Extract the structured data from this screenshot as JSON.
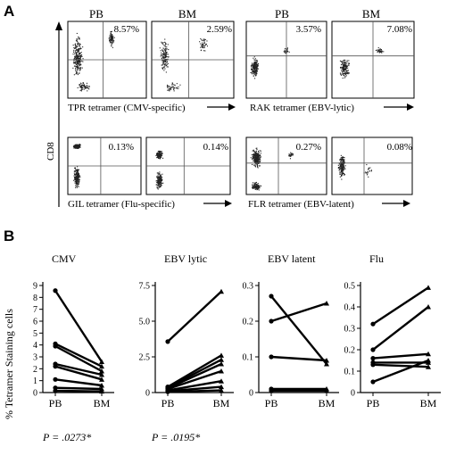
{
  "panel_a": {
    "label": "A",
    "ylabel": "CD8",
    "groups": [
      {
        "headers": [
          "PB",
          "BM"
        ],
        "percentages": [
          "8.57%",
          "2.59%"
        ],
        "xlabel": "TPR tetramer (CMV-specific)"
      },
      {
        "headers": [
          "PB",
          "BM"
        ],
        "percentages": [
          "3.57%",
          "7.08%"
        ],
        "xlabel": "RAK tetramer (EBV-lytic)"
      },
      {
        "headers": [],
        "percentages": [
          "0.13%",
          "0.14%"
        ],
        "xlabel": "GIL tetramer (Flu-specific)"
      },
      {
        "headers": [],
        "percentages": [
          "0.27%",
          "0.08%"
        ],
        "xlabel": "FLR tetramer (EBV-latent)"
      }
    ]
  },
  "panel_b": {
    "label": "B",
    "ylabel": "% Tetramer Staining cells"
  },
  "chart_data": [
    {
      "type": "line",
      "title": "CMV",
      "categories": [
        "PB",
        "BM"
      ],
      "ylim": [
        0,
        9
      ],
      "yticks": [
        "0",
        "1",
        "2",
        "3",
        "4",
        "5",
        "6",
        "7",
        "8",
        "9"
      ],
      "pvalue": "P = .0273*",
      "series": [
        {
          "values": [
            8.57,
            2.59
          ]
        },
        {
          "values": [
            4.1,
            2.2
          ]
        },
        {
          "values": [
            3.9,
            1.8
          ]
        },
        {
          "values": [
            2.4,
            1.5
          ]
        },
        {
          "values": [
            2.2,
            1.1
          ]
        },
        {
          "values": [
            1.1,
            0.6
          ]
        },
        {
          "values": [
            0.4,
            0.3
          ]
        },
        {
          "values": [
            0.15,
            0.1
          ]
        }
      ]
    },
    {
      "type": "line",
      "title": "EBV lytic",
      "categories": [
        "PB",
        "BM"
      ],
      "ylim": [
        0,
        7.5
      ],
      "yticks": [
        "0",
        "2.5",
        "5.0",
        "7.5"
      ],
      "pvalue": "P = .0195*",
      "series": [
        {
          "values": [
            3.57,
            7.08
          ]
        },
        {
          "values": [
            0.4,
            2.6
          ]
        },
        {
          "values": [
            0.35,
            2.3
          ]
        },
        {
          "values": [
            0.3,
            2.0
          ]
        },
        {
          "values": [
            0.25,
            1.5
          ]
        },
        {
          "values": [
            0.15,
            0.8
          ]
        },
        {
          "values": [
            0.1,
            0.4
          ]
        },
        {
          "values": [
            0.05,
            0.15
          ]
        }
      ]
    },
    {
      "type": "line",
      "title": "EBV latent",
      "categories": [
        "PB",
        "BM"
      ],
      "ylim": [
        0,
        0.3
      ],
      "yticks": [
        "0",
        "0.1",
        "0.2",
        "0.3"
      ],
      "pvalue": "",
      "series": [
        {
          "values": [
            0.27,
            0.08
          ]
        },
        {
          "values": [
            0.2,
            0.25
          ]
        },
        {
          "values": [
            0.1,
            0.09
          ]
        },
        {
          "values": [
            0.01,
            0.01
          ]
        },
        {
          "values": [
            0.005,
            0.005
          ]
        }
      ]
    },
    {
      "type": "line",
      "title": "Flu",
      "categories": [
        "PB",
        "BM"
      ],
      "ylim": [
        0,
        0.5
      ],
      "yticks": [
        "0",
        "0.1",
        "0.2",
        "0.3",
        "0.4",
        "0.5"
      ],
      "pvalue": "",
      "series": [
        {
          "values": [
            0.32,
            0.49
          ]
        },
        {
          "values": [
            0.2,
            0.4
          ]
        },
        {
          "values": [
            0.16,
            0.18
          ]
        },
        {
          "values": [
            0.14,
            0.14
          ]
        },
        {
          "values": [
            0.13,
            0.12
          ]
        },
        {
          "values": [
            0.05,
            0.15
          ]
        }
      ]
    }
  ]
}
